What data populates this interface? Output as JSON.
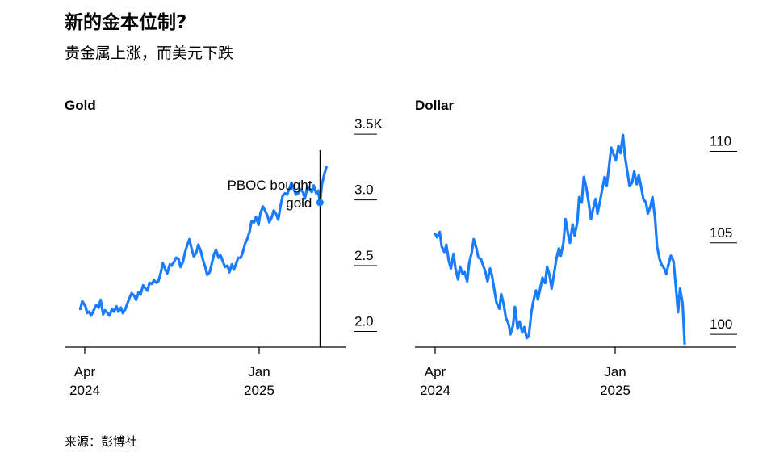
{
  "header": {
    "title": "新的金本位制?",
    "subtitle": "贵金属上涨，而美元下跌"
  },
  "footer": {
    "source": "来源：彭博社"
  },
  "colors": {
    "line": "#1a7cff",
    "axis": "#000000",
    "text": "#000000"
  },
  "chart_data": [
    {
      "type": "line",
      "title": "Gold",
      "x_ticks": [
        {
          "date": "2024-04-01",
          "month": "Apr",
          "year": "2024"
        },
        {
          "date": "2025-01-01",
          "month": "Jan",
          "year": "2025"
        }
      ],
      "y_ticks": [
        "2.0",
        "2.5",
        "3.0",
        "3.5K"
      ],
      "y_tick_values": [
        2000,
        2500,
        3000,
        3500
      ],
      "ylim": [
        1880,
        3550
      ],
      "xlim": [
        "2024-03-25",
        "2025-04-25"
      ],
      "annotation": {
        "text_line1": "PBOC bought",
        "text_line2": "gold",
        "date": "2025-04-07",
        "value": 2980
      },
      "series": [
        {
          "values": [
            [
              "2024-03-25",
              2170
            ],
            [
              "2024-03-28",
              2230
            ],
            [
              "2024-04-02",
              2190
            ],
            [
              "2024-04-05",
              2140
            ],
            [
              "2024-04-08",
              2150
            ],
            [
              "2024-04-11",
              2120
            ],
            [
              "2024-04-15",
              2160
            ],
            [
              "2024-04-19",
              2200
            ],
            [
              "2024-04-23",
              2180
            ],
            [
              "2024-04-26",
              2240
            ],
            [
              "2024-04-30",
              2130
            ],
            [
              "2024-05-03",
              2160
            ],
            [
              "2024-05-07",
              2140
            ],
            [
              "2024-05-10",
              2120
            ],
            [
              "2024-05-14",
              2170
            ],
            [
              "2024-05-17",
              2150
            ],
            [
              "2024-05-21",
              2190
            ],
            [
              "2024-05-24",
              2150
            ],
            [
              "2024-05-28",
              2180
            ],
            [
              "2024-05-31",
              2140
            ],
            [
              "2024-06-04",
              2170
            ],
            [
              "2024-06-07",
              2210
            ],
            [
              "2024-06-11",
              2260
            ],
            [
              "2024-06-14",
              2290
            ],
            [
              "2024-06-18",
              2270
            ],
            [
              "2024-06-21",
              2240
            ],
            [
              "2024-06-25",
              2300
            ],
            [
              "2024-06-28",
              2280
            ],
            [
              "2024-07-02",
              2350
            ],
            [
              "2024-07-05",
              2330
            ],
            [
              "2024-07-09",
              2310
            ],
            [
              "2024-07-12",
              2370
            ],
            [
              "2024-07-16",
              2360
            ],
            [
              "2024-07-19",
              2390
            ],
            [
              "2024-07-23",
              2370
            ],
            [
              "2024-07-26",
              2380
            ],
            [
              "2024-07-30",
              2450
            ],
            [
              "2024-08-02",
              2520
            ],
            [
              "2024-08-06",
              2470
            ],
            [
              "2024-08-09",
              2440
            ],
            [
              "2024-08-13",
              2510
            ],
            [
              "2024-08-16",
              2500
            ],
            [
              "2024-08-20",
              2530
            ],
            [
              "2024-08-23",
              2560
            ],
            [
              "2024-08-27",
              2550
            ],
            [
              "2024-08-30",
              2490
            ],
            [
              "2024-09-03",
              2530
            ],
            [
              "2024-09-06",
              2600
            ],
            [
              "2024-09-10",
              2660
            ],
            [
              "2024-09-13",
              2700
            ],
            [
              "2024-09-17",
              2620
            ],
            [
              "2024-09-20",
              2570
            ],
            [
              "2024-09-24",
              2600
            ],
            [
              "2024-09-27",
              2660
            ],
            [
              "2024-10-01",
              2610
            ],
            [
              "2024-10-04",
              2550
            ],
            [
              "2024-10-08",
              2490
            ],
            [
              "2024-10-11",
              2430
            ],
            [
              "2024-10-15",
              2450
            ],
            [
              "2024-10-18",
              2510
            ],
            [
              "2024-10-22",
              2590
            ],
            [
              "2024-10-25",
              2620
            ],
            [
              "2024-10-29",
              2560
            ],
            [
              "2024-11-01",
              2580
            ],
            [
              "2024-11-05",
              2530
            ],
            [
              "2024-11-08",
              2490
            ],
            [
              "2024-11-12",
              2500
            ],
            [
              "2024-11-15",
              2450
            ],
            [
              "2024-11-19",
              2510
            ],
            [
              "2024-11-22",
              2470
            ],
            [
              "2024-11-26",
              2520
            ],
            [
              "2024-11-29",
              2560
            ],
            [
              "2024-12-03",
              2560
            ],
            [
              "2024-12-06",
              2600
            ],
            [
              "2024-12-10",
              2670
            ],
            [
              "2024-12-13",
              2700
            ],
            [
              "2024-12-17",
              2760
            ],
            [
              "2024-12-20",
              2840
            ],
            [
              "2024-12-24",
              2830
            ],
            [
              "2024-12-27",
              2870
            ],
            [
              "2024-12-31",
              2810
            ],
            [
              "2025-01-03",
              2900
            ],
            [
              "2025-01-07",
              2950
            ],
            [
              "2025-01-10",
              2920
            ],
            [
              "2025-01-14",
              2880
            ],
            [
              "2025-01-17",
              2830
            ],
            [
              "2025-01-21",
              2870
            ],
            [
              "2025-01-24",
              2920
            ],
            [
              "2025-01-28",
              2890
            ],
            [
              "2025-01-31",
              2850
            ],
            [
              "2025-02-04",
              2960
            ],
            [
              "2025-02-07",
              3030
            ],
            [
              "2025-02-11",
              3050
            ],
            [
              "2025-02-14",
              3040
            ],
            [
              "2025-02-18",
              3090
            ],
            [
              "2025-02-21",
              3130
            ],
            [
              "2025-02-25",
              3080
            ],
            [
              "2025-02-28",
              3040
            ],
            [
              "2025-03-04",
              3050
            ],
            [
              "2025-03-07",
              3080
            ],
            [
              "2025-03-11",
              3060
            ],
            [
              "2025-03-14",
              3010
            ],
            [
              "2025-03-18",
              3100
            ],
            [
              "2025-03-21",
              3080
            ],
            [
              "2025-03-25",
              3060
            ],
            [
              "2025-03-28",
              3110
            ],
            [
              "2025-04-01",
              3050
            ],
            [
              "2025-04-04",
              3070
            ],
            [
              "2025-04-07",
              2980
            ],
            [
              "2025-04-10",
              3120
            ],
            [
              "2025-04-14",
              3200
            ],
            [
              "2025-04-17",
              3250
            ]
          ]
        }
      ]
    },
    {
      "type": "line",
      "title": "Dollar",
      "x_ticks": [
        {
          "date": "2024-04-01",
          "month": "Apr",
          "year": "2024"
        },
        {
          "date": "2025-01-01",
          "month": "Jan",
          "year": "2025"
        }
      ],
      "y_ticks": [
        "100",
        "105",
        "110"
      ],
      "y_tick_values": [
        100,
        105,
        110
      ],
      "ylim": [
        99.3,
        111.3
      ],
      "xlim": [
        "2024-03-25",
        "2025-04-25"
      ],
      "series": [
        {
          "values": [
            [
              "2024-04-01",
              105.5
            ],
            [
              "2024-04-04",
              105.3
            ],
            [
              "2024-04-08",
              105.6
            ],
            [
              "2024-04-11",
              104.8
            ],
            [
              "2024-04-15",
              104.5
            ],
            [
              "2024-04-18",
              104.9
            ],
            [
              "2024-04-22",
              104.0
            ],
            [
              "2024-04-25",
              103.6
            ],
            [
              "2024-04-29",
              104.4
            ],
            [
              "2024-05-02",
              103.6
            ],
            [
              "2024-05-06",
              103.0
            ],
            [
              "2024-05-09",
              103.7
            ],
            [
              "2024-05-13",
              103.3
            ],
            [
              "2024-05-16",
              103.4
            ],
            [
              "2024-05-20",
              102.9
            ],
            [
              "2024-05-23",
              103.9
            ],
            [
              "2024-05-27",
              104.5
            ],
            [
              "2024-05-30",
              105.2
            ],
            [
              "2024-06-03",
              104.7
            ],
            [
              "2024-06-06",
              104.2
            ],
            [
              "2024-06-10",
              104.1
            ],
            [
              "2024-06-13",
              103.8
            ],
            [
              "2024-06-17",
              103.4
            ],
            [
              "2024-06-20",
              102.9
            ],
            [
              "2024-06-24",
              103.6
            ],
            [
              "2024-06-27",
              103.2
            ],
            [
              "2024-07-01",
              102.3
            ],
            [
              "2024-07-04",
              101.7
            ],
            [
              "2024-07-08",
              101.4
            ],
            [
              "2024-07-11",
              102.2
            ],
            [
              "2024-07-15",
              101.6
            ],
            [
              "2024-07-18",
              100.9
            ],
            [
              "2024-07-22",
              100.6
            ],
            [
              "2024-07-25",
              100.0
            ],
            [
              "2024-07-29",
              100.5
            ],
            [
              "2024-08-01",
              101.5
            ],
            [
              "2024-08-05",
              100.3
            ],
            [
              "2024-08-08",
              100.7
            ],
            [
              "2024-08-12",
              100.1
            ],
            [
              "2024-08-15",
              100.4
            ],
            [
              "2024-08-19",
              99.8
            ],
            [
              "2024-08-22",
              99.9
            ],
            [
              "2024-08-26",
              101.2
            ],
            [
              "2024-08-29",
              101.8
            ],
            [
              "2024-09-02",
              102.4
            ],
            [
              "2024-09-05",
              101.9
            ],
            [
              "2024-09-09",
              102.6
            ],
            [
              "2024-09-12",
              103.1
            ],
            [
              "2024-09-16",
              102.8
            ],
            [
              "2024-09-19",
              103.7
            ],
            [
              "2024-09-23",
              103.2
            ],
            [
              "2024-09-26",
              102.5
            ],
            [
              "2024-09-30",
              103.4
            ],
            [
              "2024-10-03",
              104.1
            ],
            [
              "2024-10-07",
              104.7
            ],
            [
              "2024-10-10",
              104.3
            ],
            [
              "2024-10-14",
              105.0
            ],
            [
              "2024-10-17",
              106.3
            ],
            [
              "2024-10-21",
              105.5
            ],
            [
              "2024-10-24",
              105.0
            ],
            [
              "2024-10-28",
              106.0
            ],
            [
              "2024-10-31",
              105.4
            ],
            [
              "2024-11-04",
              106.1
            ],
            [
              "2024-11-07",
              107.5
            ],
            [
              "2024-11-11",
              107.2
            ],
            [
              "2024-11-14",
              108.6
            ],
            [
              "2024-11-18",
              108.0
            ],
            [
              "2024-11-21",
              107.3
            ],
            [
              "2024-11-25",
              106.3
            ],
            [
              "2024-11-28",
              106.8
            ],
            [
              "2024-12-02",
              107.4
            ],
            [
              "2024-12-05",
              106.6
            ],
            [
              "2024-12-09",
              107.3
            ],
            [
              "2024-12-12",
              107.9
            ],
            [
              "2024-12-16",
              108.6
            ],
            [
              "2024-12-19",
              108.1
            ],
            [
              "2024-12-23",
              109.3
            ],
            [
              "2024-12-26",
              110.2
            ],
            [
              "2024-12-30",
              109.8
            ],
            [
              "2025-01-02",
              109.5
            ],
            [
              "2025-01-06",
              110.3
            ],
            [
              "2025-01-09",
              109.9
            ],
            [
              "2025-01-13",
              110.9
            ],
            [
              "2025-01-16",
              109.7
            ],
            [
              "2025-01-20",
              108.8
            ],
            [
              "2025-01-23",
              108.1
            ],
            [
              "2025-01-27",
              108.3
            ],
            [
              "2025-01-30",
              108.9
            ],
            [
              "2025-02-03",
              108.2
            ],
            [
              "2025-02-06",
              108.7
            ],
            [
              "2025-02-10",
              108.0
            ],
            [
              "2025-02-13",
              107.4
            ],
            [
              "2025-02-17",
              107.2
            ],
            [
              "2025-02-20",
              106.6
            ],
            [
              "2025-02-24",
              107.0
            ],
            [
              "2025-02-27",
              107.5
            ],
            [
              "2025-03-03",
              106.3
            ],
            [
              "2025-03-06",
              104.8
            ],
            [
              "2025-03-10",
              104.1
            ],
            [
              "2025-03-13",
              103.8
            ],
            [
              "2025-03-17",
              103.6
            ],
            [
              "2025-03-20",
              103.3
            ],
            [
              "2025-03-24",
              103.9
            ],
            [
              "2025-03-27",
              104.3
            ],
            [
              "2025-03-31",
              104.0
            ],
            [
              "2025-04-03",
              102.9
            ],
            [
              "2025-04-07",
              101.2
            ],
            [
              "2025-04-10",
              102.5
            ],
            [
              "2025-04-14",
              101.7
            ],
            [
              "2025-04-17",
              99.5
            ]
          ]
        }
      ]
    }
  ]
}
